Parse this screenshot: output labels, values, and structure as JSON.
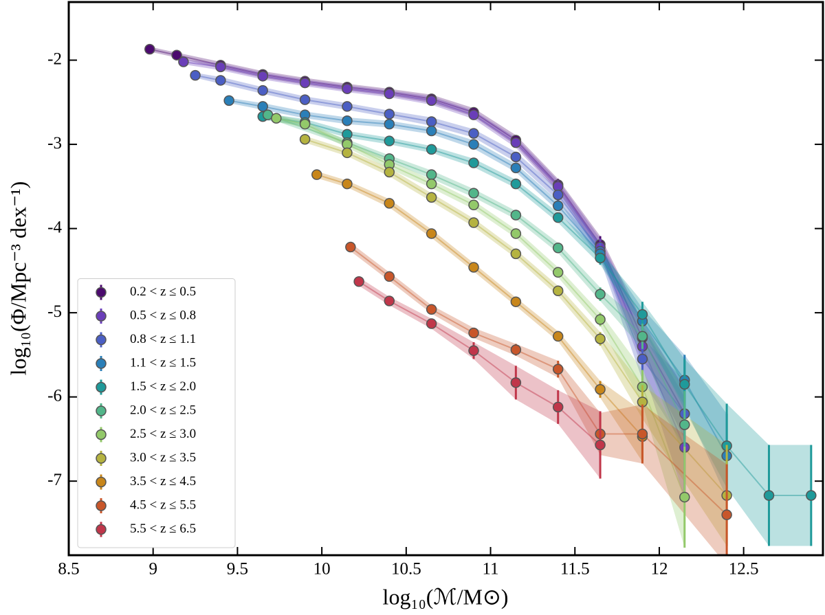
{
  "chart_data": {
    "type": "errorbar",
    "xlabel": "log₁₀(ℳ/M⊙)",
    "ylabel": "log₁₀(Φ/Mpc⁻³ dex⁻¹)",
    "xlim": [
      8.5,
      12.97
    ],
    "ylim": [
      -7.88,
      -1.31
    ],
    "xticks": [
      8.5,
      9.0,
      9.5,
      10.0,
      10.5,
      11.0,
      11.5,
      12.0,
      12.5
    ],
    "yticks": [
      -2,
      -3,
      -4,
      -5,
      -6,
      -7
    ],
    "legend": "lower left",
    "series": [
      {
        "name": "0.2 < z ≤ 0.5",
        "color": "#4b0a6e",
        "x": [
          8.98,
          9.14,
          9.4,
          9.65,
          9.9,
          10.15,
          10.4,
          10.65,
          10.9,
          11.15,
          11.4,
          11.65,
          11.9,
          12.15
        ],
        "values": [
          -1.87,
          -1.94,
          -2.06,
          -2.17,
          -2.25,
          -2.32,
          -2.38,
          -2.46,
          -2.62,
          -2.95,
          -3.48,
          -4.19,
          -5.3,
          -6.2
        ],
        "errors": [
          0.03,
          0.03,
          0.04,
          0.04,
          0.04,
          0.04,
          0.04,
          0.05,
          0.05,
          0.06,
          0.07,
          0.1,
          0.2,
          0.3
        ]
      },
      {
        "name": "0.5 < z ≤ 0.8",
        "color": "#6a3eb8",
        "x": [
          9.18,
          9.4,
          9.65,
          9.9,
          10.15,
          10.4,
          10.65,
          10.9,
          11.15,
          11.4,
          11.65,
          11.9,
          12.15
        ],
        "values": [
          -2.02,
          -2.08,
          -2.19,
          -2.27,
          -2.34,
          -2.4,
          -2.48,
          -2.65,
          -2.98,
          -3.5,
          -4.22,
          -5.4,
          -6.6
        ],
        "errors": [
          0.03,
          0.04,
          0.04,
          0.04,
          0.04,
          0.04,
          0.05,
          0.05,
          0.06,
          0.07,
          0.1,
          0.25,
          0.6
        ]
      },
      {
        "name": "0.8 < z ≤ 1.1",
        "color": "#4b5fc4",
        "x": [
          9.25,
          9.4,
          9.65,
          9.9,
          10.15,
          10.4,
          10.65,
          10.9,
          11.15,
          11.4,
          11.65,
          11.9,
          12.15
        ],
        "values": [
          -2.18,
          -2.24,
          -2.36,
          -2.47,
          -2.55,
          -2.64,
          -2.73,
          -2.87,
          -3.15,
          -3.6,
          -4.27,
          -5.55,
          -6.2
        ],
        "errors": [
          0.03,
          0.04,
          0.04,
          0.04,
          0.04,
          0.04,
          0.05,
          0.05,
          0.06,
          0.07,
          0.1,
          0.25,
          0.4
        ]
      },
      {
        "name": "1.1 < z ≤ 1.5",
        "color": "#2a7fb8",
        "x": [
          9.45,
          9.65,
          9.9,
          10.15,
          10.4,
          10.65,
          10.9,
          11.15,
          11.4,
          11.65,
          11.9,
          12.15,
          12.4
        ],
        "values": [
          -2.48,
          -2.55,
          -2.65,
          -2.72,
          -2.76,
          -2.84,
          -3.0,
          -3.28,
          -3.73,
          -4.3,
          -5.1,
          -5.8,
          -6.7
        ],
        "errors": [
          0.03,
          0.04,
          0.04,
          0.04,
          0.04,
          0.04,
          0.05,
          0.05,
          0.06,
          0.08,
          0.15,
          0.3,
          0.5
        ]
      },
      {
        "name": "1.5 < z ≤ 2.0",
        "color": "#1f9a9a",
        "x": [
          9.65,
          9.9,
          10.15,
          10.4,
          10.65,
          10.9,
          11.15,
          11.4,
          11.65,
          11.9,
          12.15,
          12.4,
          12.65,
          12.9
        ],
        "values": [
          -2.67,
          -2.74,
          -2.88,
          -2.96,
          -3.06,
          -3.22,
          -3.47,
          -3.87,
          -4.35,
          -5.02,
          -5.85,
          -6.58,
          -7.17,
          -7.17
        ],
        "errors": [
          0.04,
          0.04,
          0.04,
          0.04,
          0.04,
          0.05,
          0.05,
          0.06,
          0.08,
          0.15,
          0.3,
          0.5,
          0.6,
          0.6
        ]
      },
      {
        "name": "2.0 < z ≤ 2.5",
        "color": "#52b68a",
        "x": [
          9.68,
          10.15,
          10.4,
          10.65,
          10.9,
          11.15,
          11.4,
          11.65,
          11.9,
          12.15
        ],
        "values": [
          -2.65,
          -2.98,
          -3.17,
          -3.36,
          -3.58,
          -3.84,
          -4.23,
          -4.78,
          -5.28,
          -6.33
        ],
        "errors": [
          0.04,
          0.04,
          0.04,
          0.05,
          0.05,
          0.05,
          0.06,
          0.08,
          0.15,
          0.4
        ]
      },
      {
        "name": "2.5 < z ≤ 3.0",
        "color": "#93c96a",
        "x": [
          9.73,
          9.9,
          10.15,
          10.4,
          10.65,
          10.9,
          11.15,
          11.4,
          11.65,
          11.9,
          12.15
        ],
        "values": [
          -2.69,
          -2.76,
          -3.0,
          -3.24,
          -3.47,
          -3.72,
          -4.06,
          -4.52,
          -5.08,
          -5.88,
          -7.19
        ],
        "errors": [
          0.04,
          0.04,
          0.04,
          0.05,
          0.05,
          0.05,
          0.05,
          0.06,
          0.08,
          0.2,
          0.6
        ]
      },
      {
        "name": "3.0 < z ≤ 3.5",
        "color": "#b5b340",
        "x": [
          9.9,
          10.15,
          10.4,
          10.65,
          10.9,
          11.15,
          11.4,
          11.65,
          11.9,
          12.4
        ],
        "values": [
          -2.94,
          -3.1,
          -3.33,
          -3.63,
          -3.93,
          -4.3,
          -4.74,
          -5.31,
          -6.06,
          -7.17
        ],
        "errors": [
          0.04,
          0.04,
          0.05,
          0.05,
          0.05,
          0.05,
          0.06,
          0.08,
          0.2,
          0.6
        ]
      },
      {
        "name": "3.5 < z ≤ 4.5",
        "color": "#c8861a",
        "x": [
          9.97,
          10.15,
          10.4,
          10.65,
          10.9,
          11.15,
          11.4,
          11.65,
          11.9
        ],
        "values": [
          -3.36,
          -3.47,
          -3.7,
          -4.06,
          -4.46,
          -4.87,
          -5.28,
          -5.91,
          -6.47
        ],
        "errors": [
          0.04,
          0.04,
          0.05,
          0.05,
          0.05,
          0.05,
          0.06,
          0.1,
          0.3
        ]
      },
      {
        "name": "4.5 < z ≤ 5.5",
        "color": "#c8562a",
        "x": [
          10.17,
          10.4,
          10.65,
          10.9,
          11.15,
          11.4,
          11.65,
          11.9,
          12.4
        ],
        "values": [
          -4.22,
          -4.57,
          -4.96,
          -5.24,
          -5.44,
          -5.67,
          -6.44,
          -6.44,
          -7.4
        ],
        "errors": [
          0.05,
          0.05,
          0.05,
          0.06,
          0.07,
          0.1,
          0.25,
          0.35,
          0.6
        ]
      },
      {
        "name": "5.5 < z ≤ 6.5",
        "color": "#c0364a",
        "x": [
          10.22,
          10.4,
          10.65,
          10.9,
          11.15,
          11.4,
          11.65
        ],
        "values": [
          -4.63,
          -4.86,
          -5.13,
          -5.45,
          -5.83,
          -6.12,
          -6.57
        ],
        "errors": [
          0.05,
          0.05,
          0.06,
          0.1,
          0.2,
          0.2,
          0.4
        ]
      }
    ]
  }
}
